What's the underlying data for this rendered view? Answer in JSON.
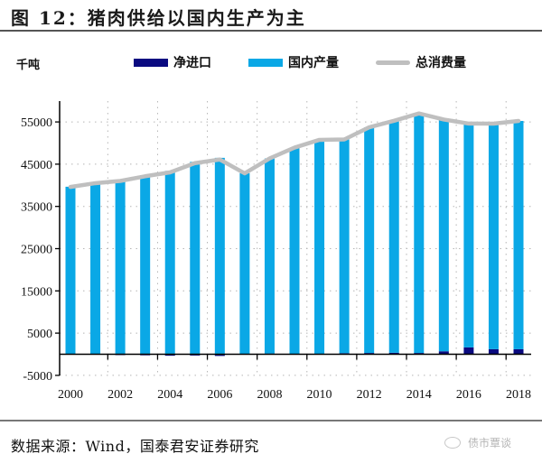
{
  "header": {
    "title": "图 12：猪肉供给以国内生产为主"
  },
  "footer": {
    "source": "数据来源：Wind，国泰君安证券研究",
    "watermark": "债市覃谈"
  },
  "colors": {
    "net_import": "#0a0a80",
    "domestic": "#0aa8e6",
    "total": "#bfbfbf"
  },
  "chart_data": {
    "type": "bar",
    "stacked": true,
    "title": "猪肉供给以国内生产为主",
    "unit_label": "千吨",
    "xlabel": "",
    "ylabel": "千吨",
    "ylim": [
      -5000,
      60000
    ],
    "yticks": [
      -5000,
      5000,
      15000,
      25000,
      35000,
      45000,
      55000
    ],
    "ytick_labels": [
      "-5000",
      "5000",
      "15000",
      "25000",
      "35000",
      "45000",
      "55000"
    ],
    "xtick_labels": [
      "2000",
      "2002",
      "2004",
      "2006",
      "2008",
      "2010",
      "2012",
      "2014",
      "2016",
      "2018"
    ],
    "grid": true,
    "legend_position": "top",
    "categories": [
      "2000",
      "2001",
      "2002",
      "2003",
      "2004",
      "2005",
      "2006",
      "2007",
      "2008",
      "2009",
      "2010",
      "2011",
      "2012",
      "2013",
      "2014",
      "2015",
      "2016",
      "2017",
      "2018"
    ],
    "series": [
      {
        "name": "净进口",
        "kind": "bar",
        "values": [
          -50,
          -20,
          -200,
          -250,
          -350,
          -300,
          -400,
          -50,
          150,
          20,
          50,
          250,
          300,
          350,
          300,
          700,
          1620,
          1200,
          1190
        ]
      },
      {
        "name": "国内产量",
        "kind": "bar",
        "values": [
          39660,
          40520,
          41230,
          42390,
          43410,
          45550,
          46500,
          42880,
          46210,
          48900,
          50710,
          50600,
          53430,
          54930,
          56710,
          54870,
          52990,
          53400,
          54040
        ]
      },
      {
        "name": "总消费量",
        "kind": "line",
        "values": [
          39610,
          40500,
          41030,
          42140,
          43060,
          45250,
          46100,
          42830,
          46360,
          48920,
          50760,
          50850,
          53730,
          55280,
          57010,
          55570,
          54610,
          54600,
          55230
        ]
      }
    ]
  }
}
